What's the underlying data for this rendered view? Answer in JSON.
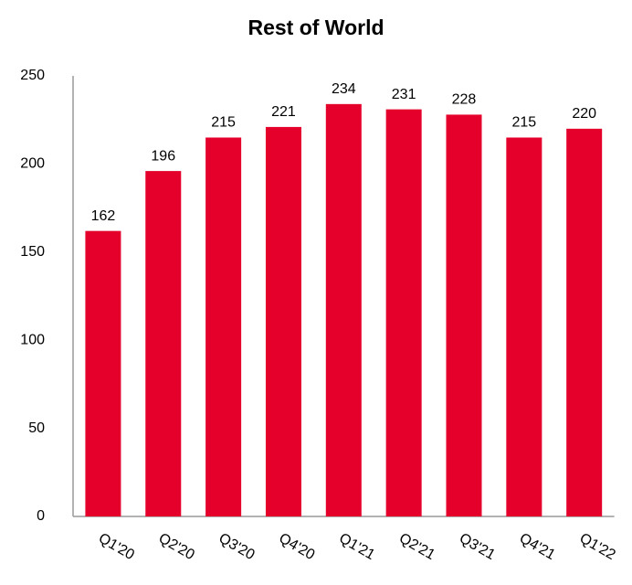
{
  "chart_data": {
    "type": "bar",
    "title": "Rest of World",
    "categories": [
      "Q1'20",
      "Q2'20",
      "Q3'20",
      "Q4'20",
      "Q1'21",
      "Q2'21",
      "Q3'21",
      "Q4'21",
      "Q1'22"
    ],
    "values": [
      162,
      196,
      215,
      221,
      234,
      231,
      228,
      215,
      220
    ],
    "color": "#e4002b",
    "ylim": [
      0,
      250
    ],
    "yticks": [
      0,
      50,
      100,
      150,
      200,
      250
    ],
    "grid": false,
    "data_labels": true
  }
}
